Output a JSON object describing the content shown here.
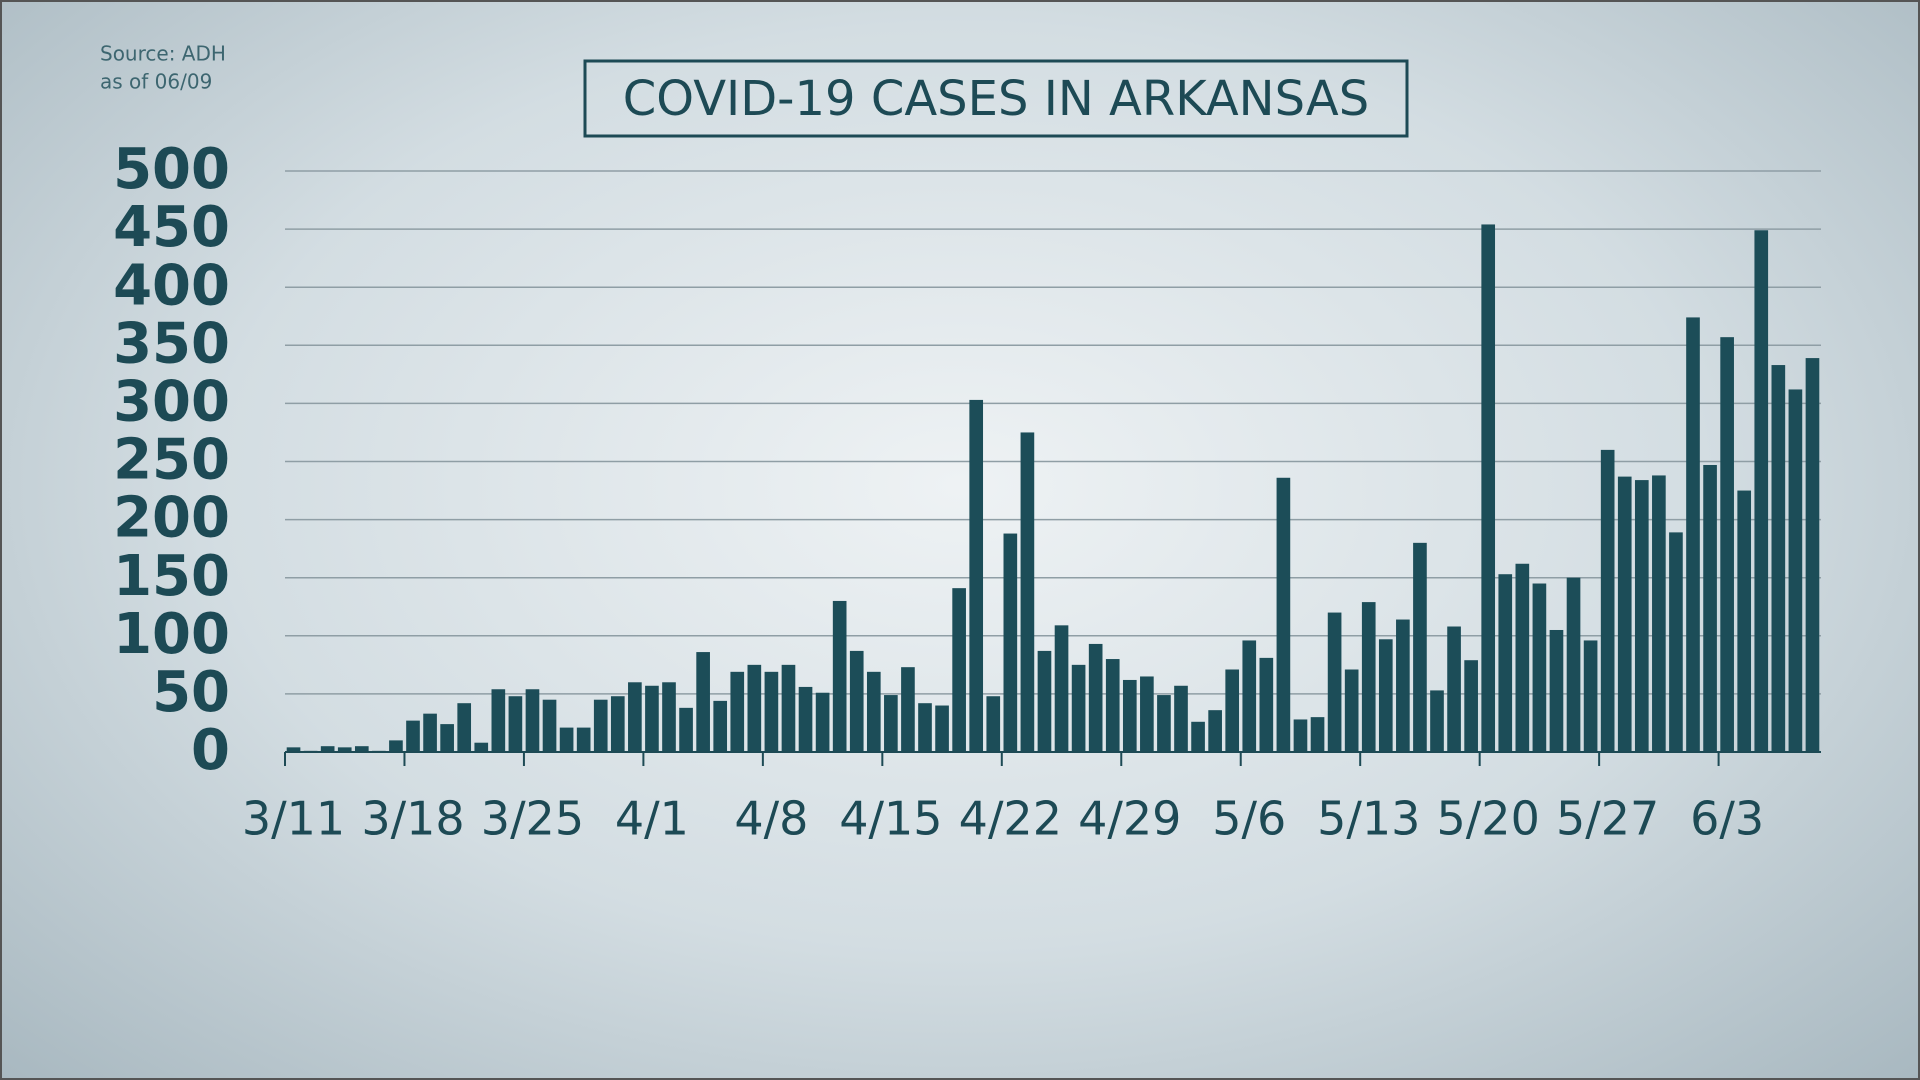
{
  "chart_data": {
    "type": "bar",
    "title": "COVID-19 CASES IN ARKANSAS",
    "notes": [
      "Source: ADH",
      "as of 06/09"
    ],
    "categories": [
      "3/11",
      null,
      null,
      null,
      null,
      null,
      null,
      "3/18",
      null,
      null,
      null,
      null,
      null,
      null,
      "3/25",
      null,
      null,
      null,
      null,
      null,
      null,
      "4/1",
      null,
      null,
      null,
      null,
      null,
      null,
      "4/8",
      null,
      null,
      null,
      null,
      null,
      null,
      "4/15",
      null,
      null,
      null,
      null,
      null,
      null,
      "4/22",
      null,
      null,
      null,
      null,
      null,
      null,
      "4/29",
      null,
      null,
      null,
      null,
      null,
      null,
      "5/6",
      null,
      null,
      null,
      null,
      null,
      null,
      "5/13",
      null,
      null,
      null,
      null,
      null,
      null,
      "5/20",
      null,
      null,
      null,
      null,
      null,
      null,
      "5/27",
      null,
      null,
      null,
      null,
      null,
      null,
      "6/3",
      null,
      null,
      null,
      null,
      null
    ],
    "values": [
      4,
      1,
      5,
      4,
      5,
      1,
      10,
      27,
      33,
      24,
      42,
      8,
      54,
      48,
      54,
      45,
      21,
      21,
      45,
      48,
      60,
      57,
      60,
      38,
      86,
      44,
      69,
      75,
      69,
      75,
      56,
      51,
      130,
      87,
      69,
      49,
      73,
      42,
      40,
      141,
      303,
      48,
      188,
      275,
      87,
      109,
      75,
      93,
      80,
      62,
      65,
      49,
      57,
      26,
      36,
      71,
      96,
      81,
      236,
      28,
      30,
      120,
      71,
      129,
      97,
      114,
      180,
      53,
      108,
      79,
      454,
      153,
      162,
      145,
      105,
      150,
      96,
      260,
      237,
      234,
      238,
      189,
      374,
      247,
      357,
      225,
      449,
      333,
      312,
      339
    ],
    "color": "#1c4d58",
    "ylim": [
      0,
      500
    ],
    "yticks": [
      0,
      50,
      100,
      150,
      200,
      250,
      300,
      350,
      400,
      450,
      500
    ],
    "grid": true
  }
}
